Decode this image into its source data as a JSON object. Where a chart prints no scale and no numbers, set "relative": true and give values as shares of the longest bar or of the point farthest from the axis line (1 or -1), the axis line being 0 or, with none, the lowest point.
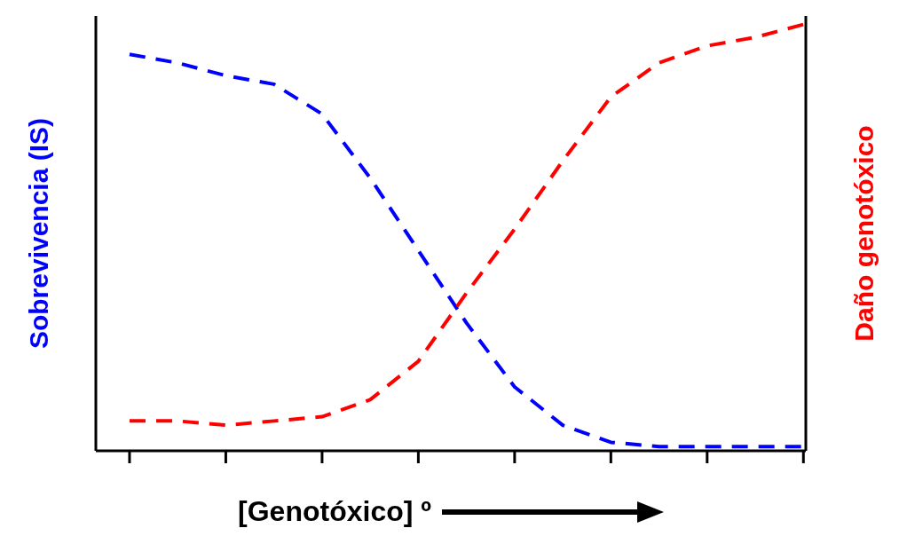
{
  "chart_data": {
    "type": "line",
    "relative": true,
    "xlabel": "[Genotóxico] º",
    "ylabel": "Sobrevivencia (IS)",
    "y2label": "Daño genotóxico",
    "categories": [
      null,
      null,
      null,
      null,
      null,
      null,
      null,
      null,
      null,
      null,
      null,
      null,
      null,
      null,
      null
    ],
    "series": [
      {
        "color": "#0000ff",
        "values": [
          0.93,
          0.91,
          0.88,
          0.86,
          0.79,
          0.64,
          0.47,
          0.3,
          0.15,
          0.06,
          0.02,
          0.01,
          0.01,
          0.01,
          0.01
        ]
      },
      {
        "color": "#ff0000",
        "values": [
          0.07,
          0.07,
          0.06,
          0.07,
          0.08,
          0.12,
          0.21,
          0.37,
          0.52,
          0.68,
          0.83,
          0.91,
          0.95,
          0.97,
          1.0
        ]
      }
    ],
    "grid": false,
    "marker": "none",
    "line_style": "dashed"
  }
}
